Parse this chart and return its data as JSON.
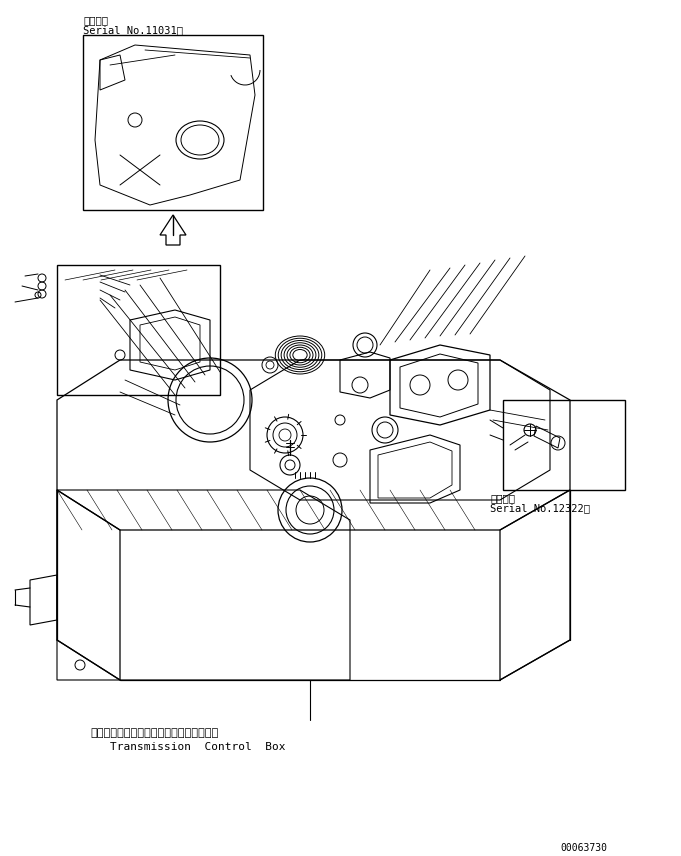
{
  "bg_color": "#ffffff",
  "line_color": "#000000",
  "fig_width": 6.81,
  "fig_height": 8.56,
  "dpi": 100,
  "top_label_jp": "適用号機",
  "top_label_serial": "Serial No.11031～",
  "right_label_jp": "適用号機",
  "right_label_serial": "Serial No.12322～",
  "bottom_label_jp": "トランスミッションコントロールボックス",
  "bottom_label_en": "Transmission  Control  Box",
  "part_number": "00063730"
}
